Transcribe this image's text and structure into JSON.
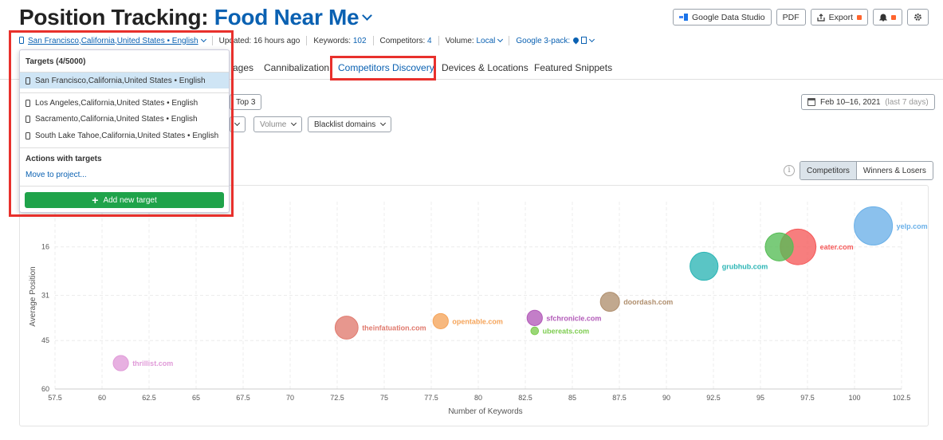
{
  "header": {
    "title_prefix": "Position Tracking:",
    "project_name": "Food Near Me",
    "buttons": {
      "data_studio": "Google Data Studio",
      "pdf": "PDF",
      "export": "Export"
    }
  },
  "info_bar": {
    "location": "San Francisco,California,United States • English",
    "updated_label": "Updated:",
    "updated_value": "16 hours ago",
    "keywords_label": "Keywords:",
    "keywords_value": "102",
    "competitors_label": "Competitors:",
    "competitors_value": "4",
    "volume_label": "Volume:",
    "volume_value": "Local",
    "pack_label": "Google 3-pack:"
  },
  "tabs": [
    {
      "label": "ages"
    },
    {
      "label": "Cannibalization"
    },
    {
      "label": "Competitors Discovery"
    },
    {
      "label": "Devices & Locations"
    },
    {
      "label": "Featured Snippets"
    }
  ],
  "filters": {
    "top3": "Top 3",
    "volume": "Volume",
    "blacklist": "Blacklist domains",
    "date_range": "Feb 10–16, 2021",
    "date_hint": "(last 7 days)"
  },
  "view_toggle": {
    "competitors": "Competitors",
    "winners_losers": "Winners & Losers"
  },
  "dropdown": {
    "header": "Targets (4/5000)",
    "targets": [
      "San Francisco,California,United States • English",
      "Los Angeles,California,United States • English",
      "Sacramento,California,United States • English",
      "South Lake Tahoe,California,United States • English"
    ],
    "actions_header": "Actions with targets",
    "move_link": "Move to project...",
    "add_button": "Add new target"
  },
  "chart_data": {
    "type": "scatter",
    "xlabel": "Number of Keywords",
    "ylabel": "Average Position",
    "xlim": [
      57.5,
      102.5
    ],
    "ylim": [
      60,
      2
    ],
    "x_ticks": [
      "57.5",
      "60",
      "62.5",
      "65",
      "67.5",
      "70",
      "72.5",
      "75",
      "77.5",
      "80",
      "82.5",
      "85",
      "87.5",
      "90",
      "92.5",
      "95",
      "97.5",
      "100",
      "102.5"
    ],
    "y_ticks": [
      {
        "label": "16",
        "value": 16
      },
      {
        "label": "31",
        "value": 31
      },
      {
        "label": "45",
        "value": 45
      },
      {
        "label": "60",
        "value": 60
      }
    ],
    "grid": true,
    "points": [
      {
        "label": "yelp.com",
        "x": 101,
        "y": 9.5,
        "size": 30,
        "color": "#6ab0e8"
      },
      {
        "label": "eater.com",
        "x": 97,
        "y": 16,
        "size": 28,
        "color": "#f55a5a"
      },
      {
        "label": "",
        "x": 96,
        "y": 16,
        "size": 22,
        "color": "#55bd55"
      },
      {
        "label": "grubhub.com",
        "x": 92,
        "y": 22,
        "size": 22,
        "color": "#2bb5b5"
      },
      {
        "label": "doordash.com",
        "x": 87,
        "y": 33,
        "size": 15,
        "color": "#b08f6e"
      },
      {
        "label": "sfchronicle.com",
        "x": 83,
        "y": 38,
        "size": 12,
        "color": "#b25ab8"
      },
      {
        "label": "ubereats.com",
        "x": 83,
        "y": 42,
        "size": 6,
        "color": "#7dcc4f"
      },
      {
        "label": "opentable.com",
        "x": 78,
        "y": 39,
        "size": 12,
        "color": "#f5a45a"
      },
      {
        "label": "theinfatuation.com",
        "x": 73,
        "y": 41,
        "size": 18,
        "color": "#e07a6e"
      },
      {
        "label": "thrillist.com",
        "x": 61,
        "y": 52,
        "size": 12,
        "color": "#e09ad8"
      }
    ]
  }
}
